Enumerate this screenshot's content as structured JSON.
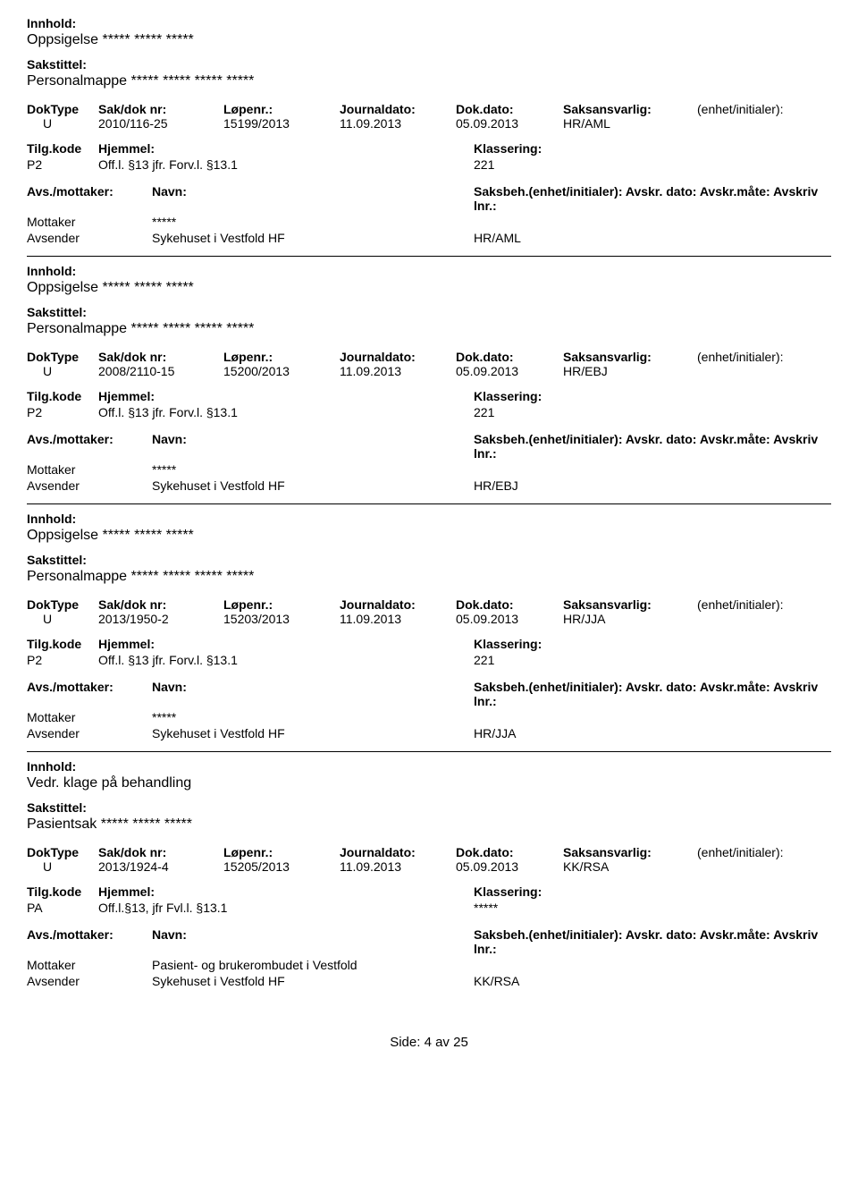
{
  "labels": {
    "innhold": "Innhold:",
    "sakstittel": "Sakstittel:",
    "doktype": "DokType",
    "sakdok": "Sak/dok nr:",
    "lopenr": "Løpenr.:",
    "journaldato": "Journaldato:",
    "dokdato": "Dok.dato:",
    "saksansvarlig": "Saksansvarlig:",
    "enhet": "(enhet/initialer):",
    "tilgkode": "Tilg.kode",
    "hjemmel": "Hjemmel:",
    "klassering": "Klassering:",
    "avsmottaker": "Avs./mottaker:",
    "navn": "Navn:",
    "saksbehline": "Saksbeh.(enhet/initialer): Avskr. dato: Avskr.måte: Avskriv lnr.:",
    "mottaker": "Mottaker",
    "avsender": "Avsender"
  },
  "records": [
    {
      "innhold": "Oppsigelse ***** ***** *****",
      "sakstittel": "Personalmappe ***** ***** ***** *****",
      "doktype": "U",
      "sakdok": "2010/116-25",
      "lopenr": "15199/2013",
      "journaldato": "11.09.2013",
      "dokdato": "05.09.2013",
      "saksansvarlig": "HR/AML",
      "tilgkode": "P2",
      "hjemmel": "Off.l. §13 jfr. Forv.l. §13.1",
      "klassering": "221",
      "mottaker_navn": "*****",
      "avsender_navn": "Sykehuset i Vestfold HF",
      "avsender_kode": "HR/AML"
    },
    {
      "innhold": "Oppsigelse ***** ***** *****",
      "sakstittel": "Personalmappe ***** ***** ***** *****",
      "doktype": "U",
      "sakdok": "2008/2110-15",
      "lopenr": "15200/2013",
      "journaldato": "11.09.2013",
      "dokdato": "05.09.2013",
      "saksansvarlig": "HR/EBJ",
      "tilgkode": "P2",
      "hjemmel": "Off.l. §13 jfr. Forv.l. §13.1",
      "klassering": "221",
      "mottaker_navn": "*****",
      "avsender_navn": "Sykehuset i Vestfold HF",
      "avsender_kode": "HR/EBJ"
    },
    {
      "innhold": "Oppsigelse ***** ***** *****",
      "sakstittel": "Personalmappe ***** ***** ***** *****",
      "doktype": "U",
      "sakdok": "2013/1950-2",
      "lopenr": "15203/2013",
      "journaldato": "11.09.2013",
      "dokdato": "05.09.2013",
      "saksansvarlig": "HR/JJA",
      "tilgkode": "P2",
      "hjemmel": "Off.l. §13 jfr. Forv.l. §13.1",
      "klassering": "221",
      "mottaker_navn": "*****",
      "avsender_navn": "Sykehuset i Vestfold HF",
      "avsender_kode": "HR/JJA"
    },
    {
      "innhold": "Vedr. klage på behandling",
      "sakstittel": "Pasientsak ***** ***** *****",
      "doktype": "U",
      "sakdok": "2013/1924-4",
      "lopenr": "15205/2013",
      "journaldato": "11.09.2013",
      "dokdato": "05.09.2013",
      "saksansvarlig": "KK/RSA",
      "tilgkode": "PA",
      "hjemmel": "Off.l.§13, jfr Fvl.l. §13.1",
      "klassering": "*****",
      "mottaker_navn": "Pasient- og brukerombudet i Vestfold",
      "avsender_navn": "Sykehuset i Vestfold HF",
      "avsender_kode": "KK/RSA"
    }
  ],
  "footer": "Side: 4 av 25"
}
